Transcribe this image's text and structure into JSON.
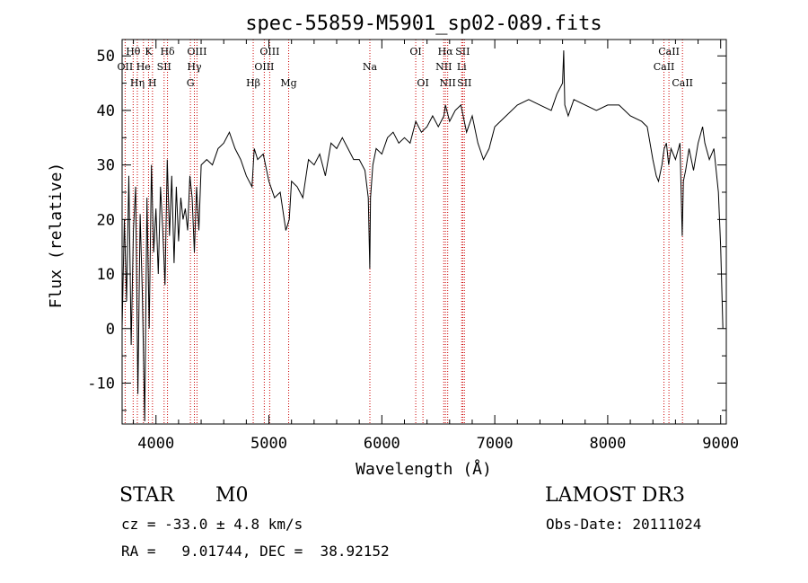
{
  "chart_data": {
    "type": "line",
    "title": "spec-55859-M5901_sp02-089.fits",
    "xlabel": "Wavelength (Å)",
    "ylabel": "Flux (relative)",
    "xlim": [
      3700,
      9050
    ],
    "ylim": [
      -17.5,
      53
    ],
    "xticks": [
      4000,
      5000,
      6000,
      7000,
      8000,
      9000
    ],
    "yticks": [
      -10,
      0,
      10,
      20,
      30,
      40,
      50
    ],
    "line_color": "#000000",
    "marker_color": "#cc0000",
    "series": [
      {
        "name": "spectrum",
        "x": [
          3700,
          3720,
          3740,
          3760,
          3780,
          3800,
          3820,
          3840,
          3860,
          3880,
          3900,
          3920,
          3940,
          3960,
          3980,
          4000,
          4020,
          4040,
          4060,
          4080,
          4100,
          4120,
          4140,
          4160,
          4180,
          4200,
          4220,
          4240,
          4260,
          4280,
          4300,
          4320,
          4340,
          4360,
          4380,
          4400,
          4450,
          4500,
          4550,
          4600,
          4650,
          4700,
          4750,
          4800,
          4850,
          4870,
          4900,
          4950,
          5000,
          5050,
          5100,
          5150,
          5180,
          5200,
          5250,
          5300,
          5350,
          5400,
          5450,
          5500,
          5550,
          5600,
          5650,
          5700,
          5750,
          5800,
          5850,
          5880,
          5893,
          5900,
          5920,
          5950,
          6000,
          6050,
          6100,
          6150,
          6200,
          6250,
          6300,
          6350,
          6400,
          6450,
          6500,
          6550,
          6563,
          6600,
          6650,
          6700,
          6750,
          6800,
          6850,
          6900,
          6950,
          7000,
          7100,
          7200,
          7300,
          7400,
          7500,
          7550,
          7600,
          7610,
          7620,
          7650,
          7700,
          7800,
          7900,
          8000,
          8100,
          8200,
          8300,
          8350,
          8400,
          8430,
          8450,
          8480,
          8500,
          8520,
          8540,
          8560,
          8600,
          8640,
          8660,
          8670,
          8690,
          8720,
          8760,
          8800,
          8840,
          8860,
          8900,
          8940,
          8980,
          9000,
          9020
        ],
        "y": [
          0,
          20,
          5,
          28,
          -3,
          18,
          26,
          -12,
          21,
          6,
          -17,
          24,
          0,
          30,
          14,
          22,
          10,
          26,
          18,
          8,
          31,
          17,
          28,
          12,
          26,
          16,
          24,
          20,
          22,
          18,
          28,
          24,
          14,
          26,
          18,
          30,
          31,
          30,
          33,
          34,
          36,
          33,
          31,
          28,
          26,
          33,
          31,
          32,
          27,
          24,
          25,
          18,
          20,
          27,
          26,
          24,
          31,
          30,
          32,
          28,
          34,
          33,
          35,
          33,
          31,
          31,
          29,
          24,
          11,
          24,
          30,
          33,
          32,
          35,
          36,
          34,
          35,
          34,
          38,
          36,
          37,
          39,
          37,
          39,
          41,
          38,
          40,
          41,
          36,
          39,
          34,
          31,
          33,
          37,
          39,
          41,
          42,
          41,
          40,
          43,
          45,
          51,
          41,
          39,
          42,
          41,
          40,
          41,
          41,
          39,
          38,
          37,
          31,
          28,
          27,
          30,
          33,
          34,
          30,
          33,
          31,
          34,
          17,
          27,
          29,
          33,
          29,
          34,
          37,
          34,
          31,
          33,
          25,
          15,
          0
        ]
      }
    ],
    "lines": [
      {
        "name": "OII",
        "wavelength": 3727,
        "row": 1
      },
      {
        "name": "Hθ",
        "wavelength": 3798,
        "row": 0
      },
      {
        "name": "Hη",
        "wavelength": 3835,
        "row": 2
      },
      {
        "name": "He",
        "wavelength": 3889,
        "row": 1
      },
      {
        "name": "K",
        "wavelength": 3934,
        "row": 0
      },
      {
        "name": "H",
        "wavelength": 3969,
        "row": 2
      },
      {
        "name": "SII",
        "wavelength": 4072,
        "row": 1
      },
      {
        "name": "Hδ",
        "wavelength": 4102,
        "row": 0
      },
      {
        "name": "G",
        "wavelength": 4305,
        "row": 2
      },
      {
        "name": "Hγ",
        "wavelength": 4340,
        "row": 1
      },
      {
        "name": "OIII",
        "wavelength": 4363,
        "row": 0
      },
      {
        "name": "Hβ",
        "wavelength": 4861,
        "row": 2
      },
      {
        "name": "OIII",
        "wavelength": 4959,
        "row": 1
      },
      {
        "name": "OIII",
        "wavelength": 5007,
        "row": 0
      },
      {
        "name": "Mg",
        "wavelength": 5175,
        "row": 2
      },
      {
        "name": "Na",
        "wavelength": 5894,
        "row": 1
      },
      {
        "name": "OI",
        "wavelength": 6300,
        "row": 0
      },
      {
        "name": "OI",
        "wavelength": 6364,
        "row": 2
      },
      {
        "name": "NII",
        "wavelength": 6548,
        "row": 1
      },
      {
        "name": "Hα",
        "wavelength": 6563,
        "row": 0
      },
      {
        "name": "NII",
        "wavelength": 6583,
        "row": 2
      },
      {
        "name": "Li",
        "wavelength": 6707,
        "row": 1
      },
      {
        "name": "SII",
        "wavelength": 6716,
        "row": 0
      },
      {
        "name": "SII",
        "wavelength": 6731,
        "row": 2
      },
      {
        "name": "CaII",
        "wavelength": 8498,
        "row": 1
      },
      {
        "name": "CaII",
        "wavelength": 8542,
        "row": 0
      },
      {
        "name": "CaII",
        "wavelength": 8662,
        "row": 2
      }
    ]
  },
  "info": {
    "class_type": "STAR",
    "subclass": "M0",
    "survey": "LAMOST DR3",
    "cz": "cz = -33.0 ± 4.8 km/s",
    "obs_date": "Obs-Date: 20111024",
    "radec": "RA =   9.01744, DEC =  38.92152"
  }
}
